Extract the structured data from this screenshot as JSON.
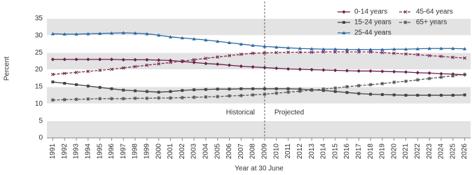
{
  "chart_data": {
    "type": "line",
    "y_label": "Percent",
    "x_label": "Year at 30 June",
    "annotations": [
      {
        "text": "Historical"
      },
      {
        "text": "Projected"
      }
    ],
    "divider": 2009,
    "x": [
      1991,
      1992,
      1993,
      1994,
      1995,
      1996,
      1997,
      1998,
      1999,
      2000,
      2001,
      2002,
      2003,
      2004,
      2005,
      2006,
      2007,
      2008,
      2009,
      2010,
      2011,
      2012,
      2013,
      2014,
      2015,
      2016,
      2017,
      2018,
      2019,
      2020,
      2021,
      2022,
      2023,
      2024,
      2025,
      2026
    ],
    "xlim": [
      1990.5,
      2026.5
    ],
    "ylim": [
      0,
      40
    ],
    "yticks": [
      0,
      5,
      10,
      15,
      20,
      25,
      30,
      35
    ],
    "series": [
      {
        "name": "0-14 years",
        "color": "#6b1f4a",
        "marker": "diamond",
        "dashed": false,
        "values": [
          23.0,
          23.0,
          23.0,
          23.0,
          23.0,
          23.0,
          22.9,
          22.9,
          22.9,
          22.8,
          22.7,
          22.4,
          22.1,
          21.8,
          21.6,
          21.3,
          21.0,
          20.8,
          20.6,
          20.4,
          20.2,
          20.1,
          20.0,
          19.9,
          19.8,
          19.7,
          19.6,
          19.6,
          19.5,
          19.4,
          19.3,
          19.1,
          19.0,
          18.8,
          18.7,
          18.5
        ]
      },
      {
        "name": "15-24 years",
        "color": "#444444",
        "marker": "square",
        "dashed": false,
        "values": [
          16.4,
          16.0,
          15.6,
          15.2,
          14.8,
          14.4,
          14.0,
          13.8,
          13.6,
          13.4,
          13.6,
          13.9,
          14.1,
          14.2,
          14.3,
          14.3,
          14.4,
          14.4,
          14.4,
          14.4,
          14.4,
          14.3,
          14.1,
          13.9,
          13.6,
          13.3,
          13.0,
          12.8,
          12.7,
          12.6,
          12.5,
          12.5,
          12.5,
          12.5,
          12.5,
          12.6
        ]
      },
      {
        "name": "25-44 years",
        "color": "#2a6aa8",
        "marker": "triangle",
        "dashed": false,
        "values": [
          30.5,
          30.4,
          30.4,
          30.5,
          30.6,
          30.7,
          30.8,
          30.7,
          30.5,
          30.1,
          29.6,
          29.3,
          29.0,
          28.7,
          28.3,
          27.9,
          27.5,
          27.1,
          26.8,
          26.6,
          26.4,
          26.2,
          26.1,
          26.0,
          26.0,
          25.9,
          25.9,
          25.9,
          25.9,
          26.0,
          26.0,
          26.1,
          26.2,
          26.2,
          26.2,
          26.1
        ]
      },
      {
        "name": "45-64 years",
        "color": "#7a2a55",
        "marker": "cross",
        "dashed": true,
        "values": [
          18.6,
          18.9,
          19.2,
          19.5,
          19.8,
          20.1,
          20.5,
          20.9,
          21.3,
          21.7,
          22.1,
          22.5,
          22.9,
          23.3,
          23.7,
          24.1,
          24.5,
          24.8,
          24.9,
          25.0,
          25.1,
          25.1,
          25.1,
          25.2,
          25.2,
          25.2,
          25.2,
          25.2,
          25.0,
          24.8,
          24.6,
          24.4,
          24.1,
          23.9,
          23.6,
          23.4
        ]
      },
      {
        "name": "65+ years",
        "color": "#555555",
        "marker": "star",
        "dashed": true,
        "values": [
          11.1,
          11.2,
          11.3,
          11.4,
          11.5,
          11.5,
          11.5,
          11.6,
          11.6,
          11.7,
          11.7,
          11.8,
          11.9,
          12.0,
          12.1,
          12.3,
          12.4,
          12.6,
          12.8,
          13.1,
          13.4,
          13.7,
          14.0,
          14.3,
          14.6,
          15.0,
          15.3,
          15.6,
          15.9,
          16.3,
          16.6,
          17.0,
          17.4,
          17.8,
          18.2,
          18.6
        ]
      }
    ]
  }
}
